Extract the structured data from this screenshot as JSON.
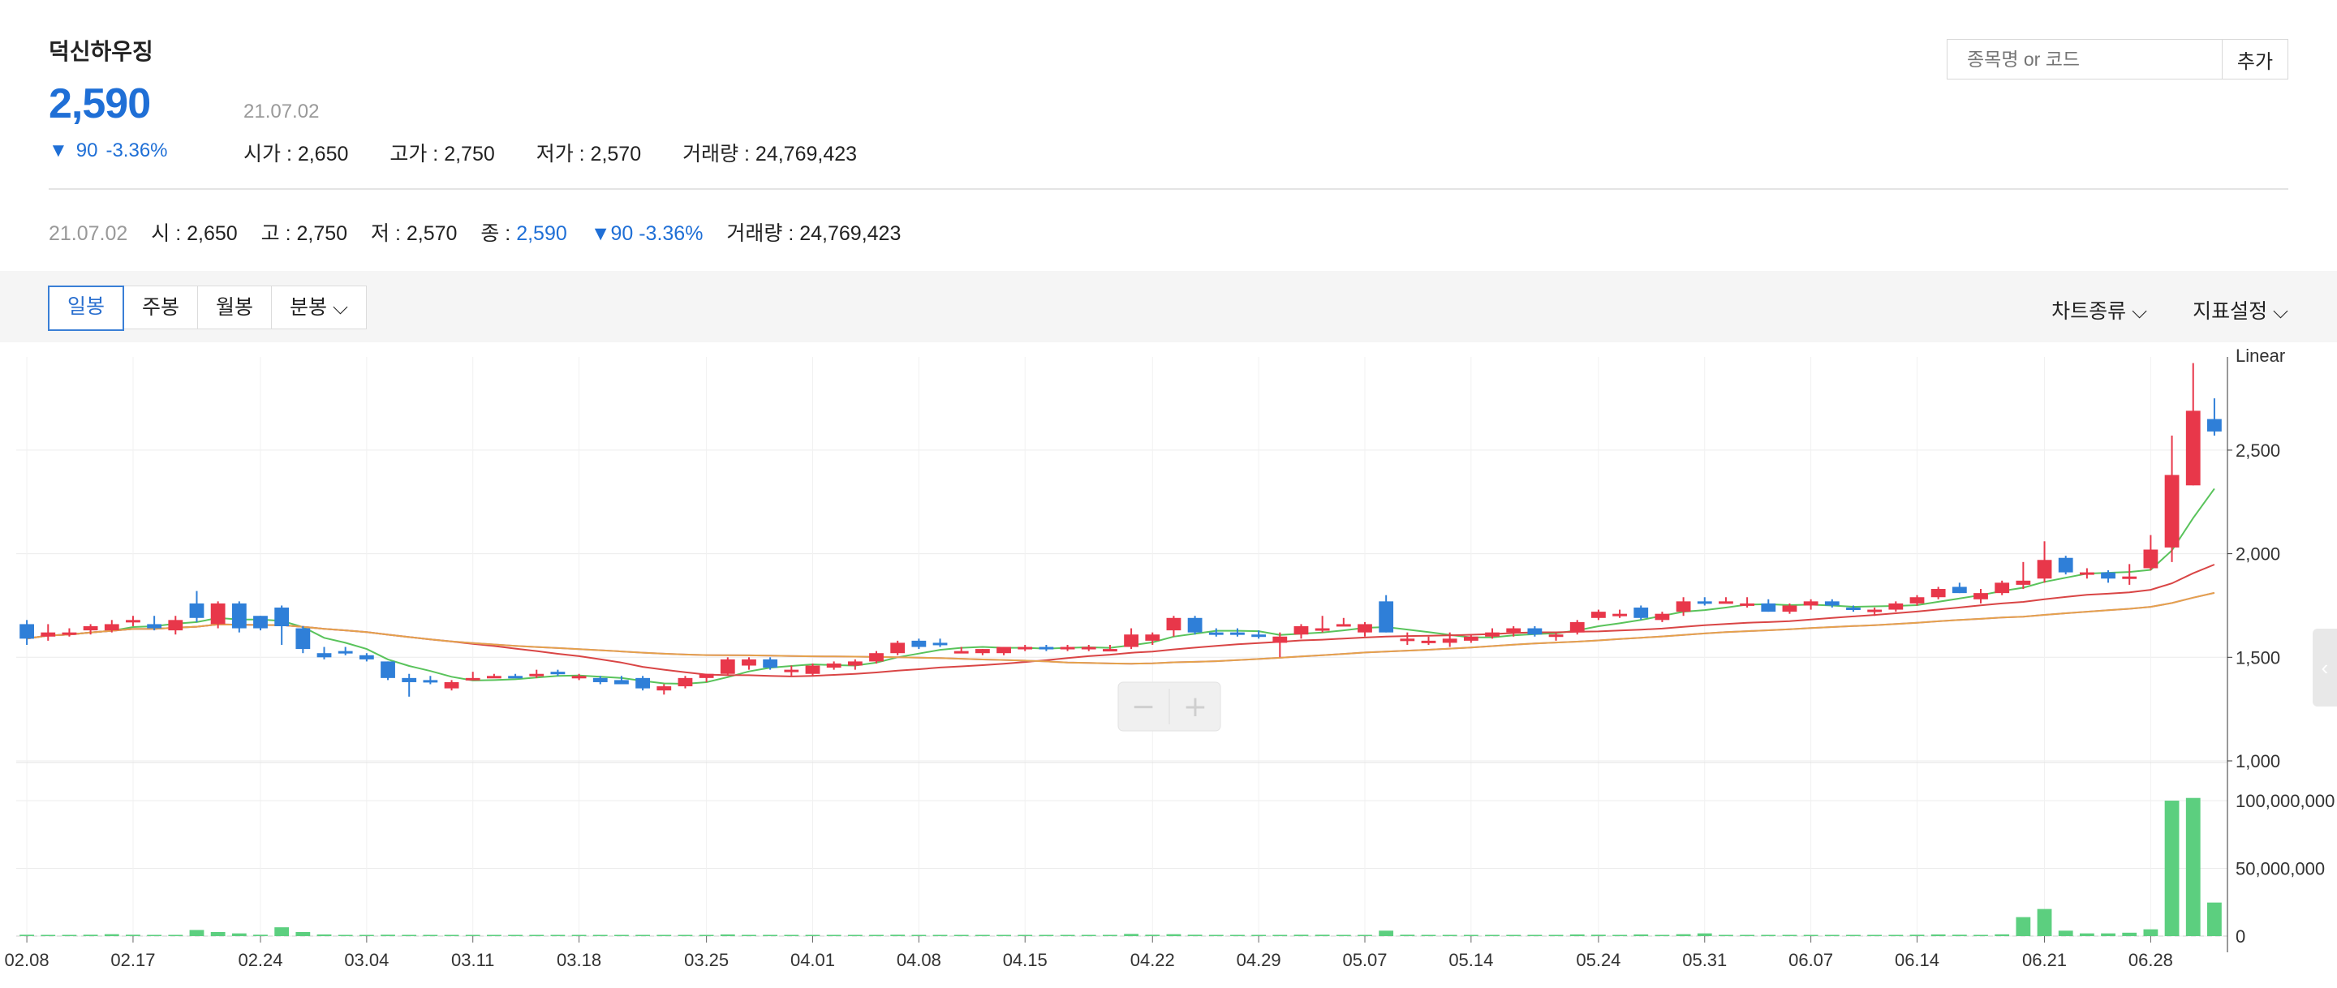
{
  "stock": {
    "name": "덕신하우징",
    "price": "2,590",
    "change": "90",
    "change_pct": "-3.36%",
    "date": "21.07.02",
    "open_label": "시가 : 2,650",
    "high_label": "고가 : 2,750",
    "low_label": "저가 : 2,570",
    "volume_label": "거래량 : 24,769,423"
  },
  "search": {
    "placeholder": "종목명 or 코드",
    "add_label": "추가"
  },
  "summary": {
    "date": "21.07.02",
    "open_key": "시 : ",
    "open": "2,650",
    "high_key": "고 : ",
    "high": "2,750",
    "low_key": "저 : ",
    "low": "2,570",
    "close_key": "종 : ",
    "close": "2,590",
    "change": "▼90 -3.36%",
    "volume_key": "거래량 : ",
    "volume": "24,769,423"
  },
  "tabs": [
    "일봉",
    "주봉",
    "월봉",
    "분봉"
  ],
  "tools": {
    "chart_type": "차트종류",
    "indicator": "지표설정"
  },
  "colors": {
    "up": "#e8374a",
    "down": "#2f7fd8",
    "accent": "#1f6fd6",
    "volume": "#5ccf7f",
    "ma5": "#59c35b",
    "ma20": "#d94545",
    "ma60": "#b36ee6",
    "ma120": "#e5a24a"
  },
  "chart_data": {
    "type": "candlestick",
    "scale_label": "Linear",
    "price_ticks": [
      1000,
      1500,
      2000,
      2500
    ],
    "price_tick_labels": [
      "1,000",
      "1,500",
      "2,000",
      "2,500"
    ],
    "ylim": [
      1000,
      2950
    ],
    "volume_ticks": [
      0,
      50000000,
      100000000
    ],
    "volume_tick_labels": [
      "0",
      "50,000,000",
      "100,000,000"
    ],
    "x_ticks": [
      "02.08",
      "02.17",
      "02.24",
      "03.04",
      "03.11",
      "03.18",
      "03.25",
      "04.01",
      "04.08",
      "04.15",
      "04.22",
      "04.29",
      "05.07",
      "05.14",
      "05.24",
      "05.31",
      "06.07",
      "06.14",
      "06.21",
      "06.28"
    ],
    "candles": [
      [
        1660,
        1680,
        1560,
        1590,
        1000000
      ],
      [
        1600,
        1660,
        1580,
        1620,
        800000
      ],
      [
        1610,
        1640,
        1600,
        1620,
        600000
      ],
      [
        1630,
        1660,
        1610,
        1650,
        1000000
      ],
      [
        1630,
        1680,
        1620,
        1660,
        1400000
      ],
      [
        1670,
        1700,
        1650,
        1680,
        1000000
      ],
      [
        1660,
        1700,
        1630,
        1640,
        500000
      ],
      [
        1630,
        1700,
        1610,
        1680,
        900000
      ],
      [
        1760,
        1820,
        1670,
        1690,
        4500000
      ],
      [
        1660,
        1770,
        1640,
        1760,
        3000000
      ],
      [
        1760,
        1770,
        1620,
        1640,
        2000000
      ],
      [
        1700,
        1700,
        1630,
        1640,
        1000000
      ],
      [
        1740,
        1750,
        1560,
        1650,
        6500000
      ],
      [
        1640,
        1650,
        1520,
        1540,
        3000000
      ],
      [
        1520,
        1550,
        1490,
        1500,
        1200000
      ],
      [
        1530,
        1550,
        1510,
        1520,
        700000
      ],
      [
        1510,
        1520,
        1480,
        1490,
        600000
      ],
      [
        1480,
        1480,
        1390,
        1400,
        1000000
      ],
      [
        1400,
        1420,
        1310,
        1380,
        900000
      ],
      [
        1390,
        1410,
        1370,
        1380,
        500000
      ],
      [
        1350,
        1390,
        1340,
        1380,
        600000
      ],
      [
        1400,
        1430,
        1390,
        1400,
        500000
      ],
      [
        1410,
        1420,
        1400,
        1410,
        400000
      ],
      [
        1410,
        1420,
        1400,
        1400,
        400000
      ],
      [
        1410,
        1440,
        1400,
        1420,
        500000
      ],
      [
        1430,
        1440,
        1410,
        1420,
        500000
      ],
      [
        1400,
        1420,
        1390,
        1410,
        500000
      ],
      [
        1400,
        1410,
        1370,
        1380,
        500000
      ],
      [
        1390,
        1410,
        1370,
        1370,
        500000
      ],
      [
        1400,
        1410,
        1340,
        1350,
        600000
      ],
      [
        1340,
        1370,
        1320,
        1360,
        700000
      ],
      [
        1360,
        1410,
        1350,
        1400,
        700000
      ],
      [
        1400,
        1420,
        1380,
        1420,
        500000
      ],
      [
        1420,
        1500,
        1410,
        1490,
        1200000
      ],
      [
        1460,
        1500,
        1440,
        1490,
        700000
      ],
      [
        1490,
        1500,
        1440,
        1450,
        600000
      ],
      [
        1430,
        1460,
        1410,
        1440,
        500000
      ],
      [
        1420,
        1470,
        1410,
        1460,
        500000
      ],
      [
        1450,
        1480,
        1440,
        1470,
        500000
      ],
      [
        1460,
        1490,
        1440,
        1480,
        500000
      ],
      [
        1480,
        1530,
        1470,
        1520,
        900000
      ],
      [
        1520,
        1580,
        1510,
        1570,
        1000000
      ],
      [
        1580,
        1590,
        1540,
        1550,
        700000
      ],
      [
        1570,
        1590,
        1550,
        1560,
        700000
      ],
      [
        1530,
        1550,
        1520,
        1530,
        500000
      ],
      [
        1520,
        1540,
        1510,
        1540,
        600000
      ],
      [
        1520,
        1550,
        1510,
        1550,
        500000
      ],
      [
        1540,
        1560,
        1530,
        1550,
        500000
      ],
      [
        1550,
        1560,
        1530,
        1540,
        400000
      ],
      [
        1540,
        1560,
        1530,
        1550,
        400000
      ],
      [
        1550,
        1560,
        1530,
        1550,
        400000
      ],
      [
        1540,
        1560,
        1530,
        1540,
        400000
      ],
      [
        1550,
        1640,
        1540,
        1610,
        1600000
      ],
      [
        1580,
        1620,
        1560,
        1610,
        1000000
      ],
      [
        1630,
        1700,
        1600,
        1690,
        1400000
      ],
      [
        1690,
        1700,
        1610,
        1620,
        1000000
      ],
      [
        1620,
        1640,
        1600,
        1610,
        700000
      ],
      [
        1620,
        1640,
        1600,
        1610,
        700000
      ],
      [
        1610,
        1630,
        1590,
        1600,
        600000
      ],
      [
        1570,
        1620,
        1500,
        1600,
        800000
      ],
      [
        1610,
        1660,
        1590,
        1650,
        1000000
      ],
      [
        1640,
        1700,
        1620,
        1640,
        1000000
      ],
      [
        1660,
        1690,
        1650,
        1660,
        700000
      ],
      [
        1620,
        1670,
        1600,
        1660,
        900000
      ],
      [
        1770,
        1800,
        1620,
        1620,
        4000000
      ],
      [
        1580,
        1620,
        1560,
        1590,
        1000000
      ],
      [
        1580,
        1600,
        1560,
        1580,
        700000
      ],
      [
        1570,
        1620,
        1550,
        1590,
        900000
      ],
      [
        1580,
        1610,
        1570,
        1600,
        600000
      ],
      [
        1600,
        1640,
        1590,
        1620,
        800000
      ],
      [
        1620,
        1650,
        1600,
        1640,
        800000
      ],
      [
        1640,
        1650,
        1600,
        1610,
        900000
      ],
      [
        1600,
        1620,
        1580,
        1610,
        700000
      ],
      [
        1620,
        1680,
        1610,
        1670,
        1200000
      ],
      [
        1690,
        1730,
        1680,
        1720,
        1000000
      ],
      [
        1700,
        1730,
        1690,
        1710,
        800000
      ],
      [
        1740,
        1750,
        1680,
        1690,
        1200000
      ],
      [
        1680,
        1720,
        1670,
        1710,
        900000
      ],
      [
        1720,
        1790,
        1700,
        1770,
        1400000
      ],
      [
        1770,
        1790,
        1750,
        1760,
        2000000
      ],
      [
        1770,
        1790,
        1760,
        1770,
        800000
      ],
      [
        1760,
        1790,
        1740,
        1760,
        800000
      ],
      [
        1760,
        1780,
        1720,
        1720,
        900000
      ],
      [
        1720,
        1760,
        1710,
        1750,
        800000
      ],
      [
        1750,
        1780,
        1730,
        1770,
        900000
      ],
      [
        1770,
        1780,
        1740,
        1750,
        800000
      ],
      [
        1740,
        1750,
        1720,
        1730,
        700000
      ],
      [
        1720,
        1740,
        1700,
        1730,
        700000
      ],
      [
        1730,
        1770,
        1720,
        1760,
        900000
      ],
      [
        1760,
        1800,
        1750,
        1790,
        1000000
      ],
      [
        1790,
        1840,
        1780,
        1830,
        1200000
      ],
      [
        1840,
        1860,
        1810,
        1810,
        1000000
      ],
      [
        1780,
        1830,
        1760,
        1810,
        900000
      ],
      [
        1810,
        1870,
        1800,
        1860,
        1300000
      ],
      [
        1850,
        1960,
        1830,
        1870,
        14000000
      ],
      [
        1880,
        2060,
        1860,
        1970,
        20000000
      ],
      [
        1980,
        1990,
        1900,
        1910,
        4000000
      ],
      [
        1900,
        1930,
        1880,
        1910,
        2000000
      ],
      [
        1910,
        1920,
        1860,
        1880,
        2000000
      ],
      [
        1880,
        1950,
        1850,
        1890,
        2500000
      ],
      [
        1930,
        2090,
        1920,
        2020,
        5000000
      ],
      [
        2030,
        2570,
        1960,
        2380,
        100000000
      ],
      [
        2330,
        2920,
        2330,
        2690,
        102000000
      ],
      [
        2650,
        2750,
        2570,
        2590,
        24769423
      ]
    ],
    "moving_averages": [
      {
        "period": 5,
        "color": "#59c35b"
      },
      {
        "period": 20,
        "color": "#d94545"
      },
      {
        "period": 60,
        "color": "#b36ee6"
      },
      {
        "period": 120,
        "color": "#e5a24a"
      }
    ]
  }
}
